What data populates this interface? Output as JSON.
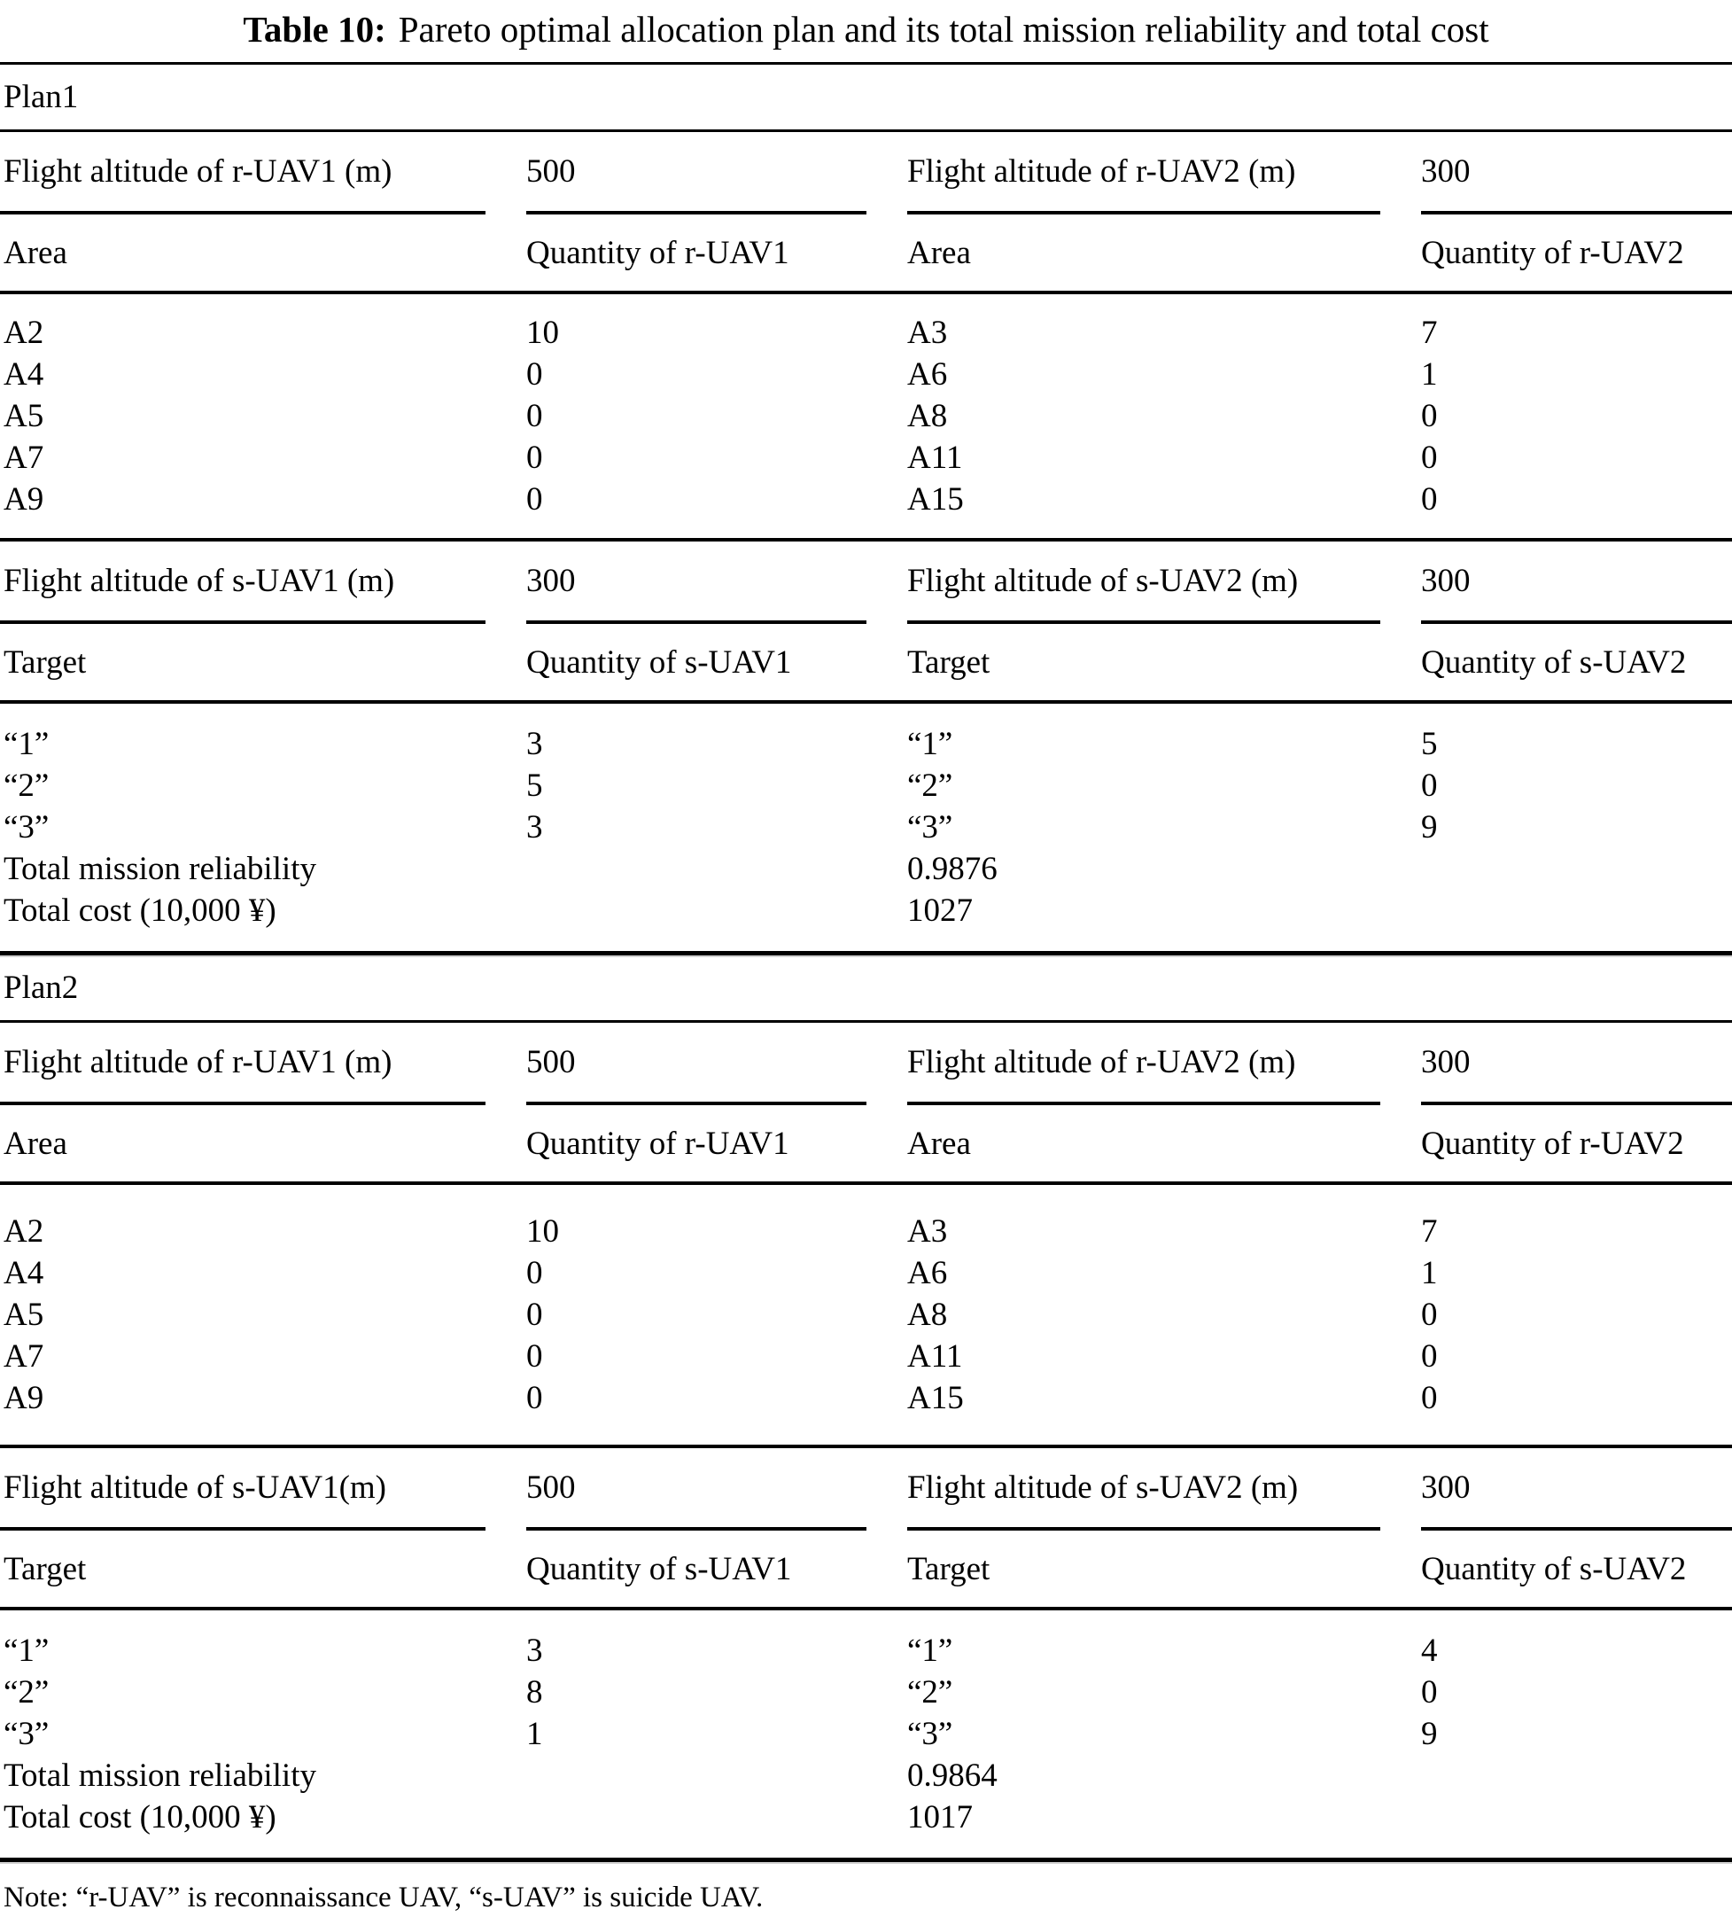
{
  "title": {
    "label": "Table 10:",
    "text": "Pareto optimal allocation plan and its total mission reliability and total cost"
  },
  "plan1": {
    "label": "Plan1",
    "r_alt": [
      "Flight altitude of r-UAV1 (m)",
      "500",
      "Flight altitude of r-UAV2 (m)",
      "300"
    ],
    "r_head": [
      "Area",
      "Quantity of r-UAV1",
      "Area",
      "Quantity of r-UAV2"
    ],
    "r_rows": [
      [
        "A2",
        "10",
        "A3",
        "7"
      ],
      [
        "A4",
        "0",
        "A6",
        "1"
      ],
      [
        "A5",
        "0",
        "A8",
        "0"
      ],
      [
        "A7",
        "0",
        "A11",
        "0"
      ],
      [
        "A9",
        "0",
        "A15",
        "0"
      ]
    ],
    "s_alt": [
      "Flight altitude of s-UAV1 (m)",
      "300",
      "Flight altitude of s-UAV2 (m)",
      "300"
    ],
    "s_head": [
      "Target",
      "Quantity of s-UAV1",
      "Target",
      "Quantity of s-UAV2"
    ],
    "s_rows": [
      [
        "“1”",
        "3",
        "“1”",
        "5"
      ],
      [
        "“2”",
        "5",
        "“2”",
        "0"
      ],
      [
        "“3”",
        "3",
        "“3”",
        "9"
      ]
    ],
    "reliability_label": "Total mission reliability",
    "reliability_value": "0.9876",
    "cost_label": "Total cost (10,000 ¥)",
    "cost_value": "1027"
  },
  "plan2": {
    "label": "Plan2",
    "r_alt": [
      "Flight altitude of r-UAV1 (m)",
      "500",
      "Flight altitude of r-UAV2 (m)",
      "300"
    ],
    "r_head": [
      "Area",
      "Quantity of r-UAV1",
      "Area",
      "Quantity of r-UAV2"
    ],
    "r_rows": [
      [
        "A2",
        "10",
        "A3",
        "7"
      ],
      [
        "A4",
        "0",
        "A6",
        "1"
      ],
      [
        "A5",
        "0",
        "A8",
        "0"
      ],
      [
        "A7",
        "0",
        "A11",
        "0"
      ],
      [
        "A9",
        "0",
        "A15",
        "0"
      ]
    ],
    "s_alt": [
      "Flight altitude of s-UAV1(m)",
      "500",
      "Flight altitude of s-UAV2 (m)",
      "300"
    ],
    "s_head": [
      "Target",
      "Quantity of s-UAV1",
      "Target",
      "Quantity of s-UAV2"
    ],
    "s_rows": [
      [
        "“1”",
        "3",
        "“1”",
        "4"
      ],
      [
        "“2”",
        "8",
        "“2”",
        "0"
      ],
      [
        "“3”",
        "1",
        "“3”",
        "9"
      ]
    ],
    "reliability_label": "Total mission reliability",
    "reliability_value": "0.9864",
    "cost_label": "Total cost (10,000 ¥)",
    "cost_value": "1017"
  },
  "note": "Note: “r-UAV” is reconnaissance UAV, “s-UAV” is suicide UAV."
}
